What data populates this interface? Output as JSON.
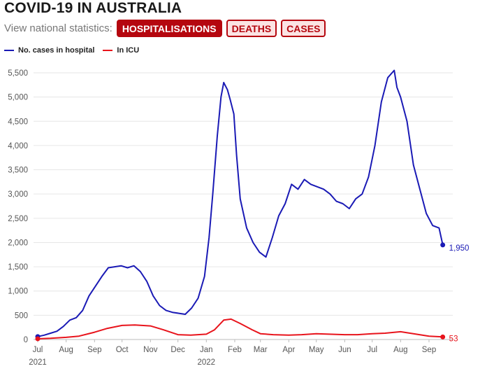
{
  "header": {
    "title": "COVID-19 IN AUSTRALIA",
    "controls_label": "View national statistics:",
    "tabs": [
      {
        "label": "HOSPITALISATIONS",
        "active": true
      },
      {
        "label": "DEATHS",
        "active": false
      },
      {
        "label": "CASES",
        "active": false
      }
    ]
  },
  "colors": {
    "hospital": "#1a1ab5",
    "icu": "#e8141c",
    "accent": "#b5070f"
  },
  "chart_data": {
    "type": "line",
    "title": "",
    "xlabel": "",
    "ylabel": "",
    "ylim": [
      0,
      5500
    ],
    "grid": true,
    "legend": "top-left",
    "y_ticks": [
      "0",
      "500",
      "1,000",
      "1,500",
      "2,000",
      "2,500",
      "3,000",
      "3,500",
      "4,000",
      "4,500",
      "5,000",
      "5,500"
    ],
    "x_ticks": [
      {
        "label": "Jul",
        "date": "2021-07-01"
      },
      {
        "label": "Aug",
        "date": "2021-08-01"
      },
      {
        "label": "Sep",
        "date": "2021-09-01"
      },
      {
        "label": "Oct",
        "date": "2021-10-01"
      },
      {
        "label": "Nov",
        "date": "2021-11-01"
      },
      {
        "label": "Dec",
        "date": "2021-12-01"
      },
      {
        "label": "Jan",
        "date": "2022-01-01"
      },
      {
        "label": "Feb",
        "date": "2022-02-01"
      },
      {
        "label": "Mar",
        "date": "2022-03-01"
      },
      {
        "label": "Apr",
        "date": "2022-04-01"
      },
      {
        "label": "May",
        "date": "2022-05-01"
      },
      {
        "label": "Jun",
        "date": "2022-06-01"
      },
      {
        "label": "Jul",
        "date": "2022-07-01"
      },
      {
        "label": "Aug",
        "date": "2022-08-01"
      },
      {
        "label": "Sep",
        "date": "2022-09-01"
      }
    ],
    "year_labels": [
      {
        "label": "2021",
        "date": "2021-07-01"
      },
      {
        "label": "2022",
        "date": "2022-01-01"
      }
    ],
    "series": [
      {
        "name": "No. cases in hospital",
        "end_label": "1,950",
        "x": [
          "2021-07-01",
          "2021-07-08",
          "2021-07-15",
          "2021-07-22",
          "2021-07-29",
          "2021-08-05",
          "2021-08-12",
          "2021-08-19",
          "2021-08-26",
          "2021-09-02",
          "2021-09-09",
          "2021-09-16",
          "2021-09-23",
          "2021-09-30",
          "2021-10-07",
          "2021-10-14",
          "2021-10-21",
          "2021-10-28",
          "2021-11-04",
          "2021-11-11",
          "2021-11-18",
          "2021-11-25",
          "2021-12-02",
          "2021-12-09",
          "2021-12-16",
          "2021-12-23",
          "2021-12-30",
          "2022-01-04",
          "2022-01-08",
          "2022-01-13",
          "2022-01-17",
          "2022-01-20",
          "2022-01-24",
          "2022-01-27",
          "2022-01-31",
          "2022-02-03",
          "2022-02-07",
          "2022-02-14",
          "2022-02-21",
          "2022-02-28",
          "2022-03-07",
          "2022-03-14",
          "2022-03-21",
          "2022-03-28",
          "2022-04-04",
          "2022-04-11",
          "2022-04-18",
          "2022-04-25",
          "2022-05-02",
          "2022-05-09",
          "2022-05-16",
          "2022-05-23",
          "2022-05-30",
          "2022-06-06",
          "2022-06-13",
          "2022-06-20",
          "2022-06-27",
          "2022-07-04",
          "2022-07-11",
          "2022-07-18",
          "2022-07-25",
          "2022-07-28",
          "2022-08-01",
          "2022-08-08",
          "2022-08-15",
          "2022-08-22",
          "2022-08-29",
          "2022-09-05",
          "2022-09-12",
          "2022-09-16"
        ],
        "values": [
          60,
          90,
          130,
          170,
          270,
          400,
          450,
          600,
          900,
          1100,
          1300,
          1480,
          1500,
          1520,
          1480,
          1520,
          1400,
          1200,
          900,
          700,
          600,
          560,
          540,
          520,
          650,
          850,
          1300,
          2100,
          3000,
          4200,
          5000,
          5300,
          5150,
          4950,
          4650,
          3800,
          2900,
          2300,
          2000,
          1800,
          1700,
          2100,
          2550,
          2800,
          3200,
          3100,
          3300,
          3200,
          3150,
          3100,
          3000,
          2850,
          2800,
          2700,
          2900,
          3000,
          3350,
          4000,
          4900,
          5400,
          5550,
          5200,
          5000,
          4500,
          3600,
          3100,
          2600,
          2350,
          2300,
          1950
        ]
      },
      {
        "name": "In ICU",
        "end_label": "53",
        "x": [
          "2021-07-01",
          "2021-07-15",
          "2021-08-01",
          "2021-08-15",
          "2021-09-01",
          "2021-09-15",
          "2021-10-01",
          "2021-10-15",
          "2021-11-01",
          "2021-11-15",
          "2021-12-01",
          "2021-12-15",
          "2022-01-01",
          "2022-01-10",
          "2022-01-20",
          "2022-01-28",
          "2022-02-07",
          "2022-02-20",
          "2022-03-01",
          "2022-03-15",
          "2022-04-01",
          "2022-04-15",
          "2022-05-01",
          "2022-05-15",
          "2022-06-01",
          "2022-06-15",
          "2022-07-01",
          "2022-07-15",
          "2022-08-01",
          "2022-08-15",
          "2022-09-01",
          "2022-09-16"
        ],
        "values": [
          15,
          25,
          45,
          70,
          150,
          230,
          290,
          300,
          280,
          200,
          100,
          90,
          110,
          200,
          400,
          420,
          330,
          200,
          120,
          100,
          90,
          100,
          120,
          110,
          100,
          100,
          120,
          130,
          160,
          120,
          70,
          53
        ]
      }
    ]
  }
}
